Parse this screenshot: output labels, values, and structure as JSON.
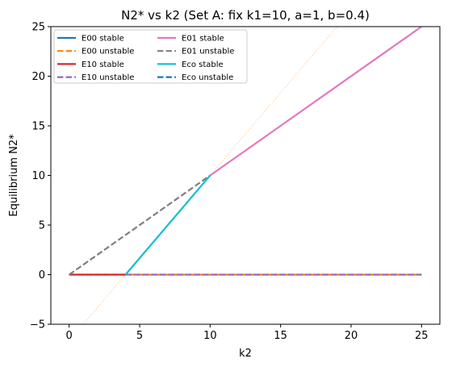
{
  "chart_data": {
    "type": "line",
    "title": "N2* vs k2 (Set A: fix k1=10, a=1, b=0.4)",
    "xlabel": "k2",
    "ylabel": "Equilibrium N2*",
    "xlim": [
      -1.3,
      26.3
    ],
    "ylim": [
      -5,
      25
    ],
    "xticks": [
      0,
      5,
      10,
      15,
      20,
      25
    ],
    "yticks": [
      -5,
      0,
      5,
      10,
      15,
      20,
      25
    ],
    "grid": false,
    "legend_position": "top-left",
    "legend_columns": 2,
    "series": [
      {
        "name": "E00 stable",
        "color": "#1f77b4",
        "dash": "solid",
        "x": [],
        "y": []
      },
      {
        "name": "E00 unstable",
        "color": "#ff7f0e",
        "dash": "dashed",
        "x": [
          0,
          25
        ],
        "y": [
          0,
          0
        ]
      },
      {
        "name": "E10 stable",
        "color": "#d62728",
        "dash": "solid",
        "x": [
          0,
          4
        ],
        "y": [
          0,
          0
        ]
      },
      {
        "name": "E10 unstable",
        "color": "#9467bd",
        "dash": "dashed",
        "x": [
          4,
          25
        ],
        "y": [
          0,
          0
        ]
      },
      {
        "name": "E01 stable",
        "color": "#e377c2",
        "dash": "solid",
        "x": [
          10,
          25
        ],
        "y": [
          10,
          25
        ]
      },
      {
        "name": "E01 unstable",
        "color": "#7f7f7f",
        "dash": "dashed",
        "x": [
          0,
          10
        ],
        "y": [
          0,
          10
        ]
      },
      {
        "name": "Eco stable",
        "color": "#17becf",
        "dash": "solid",
        "x": [
          4,
          10
        ],
        "y": [
          0,
          10
        ]
      },
      {
        "name": "Eco unstable",
        "color": "#1f77b4",
        "dash": "dashed",
        "x": [],
        "y": []
      }
    ],
    "reference_line": {
      "color": "#ffbb78",
      "x": [
        1,
        19
      ],
      "y": [
        -5,
        25
      ]
    }
  }
}
